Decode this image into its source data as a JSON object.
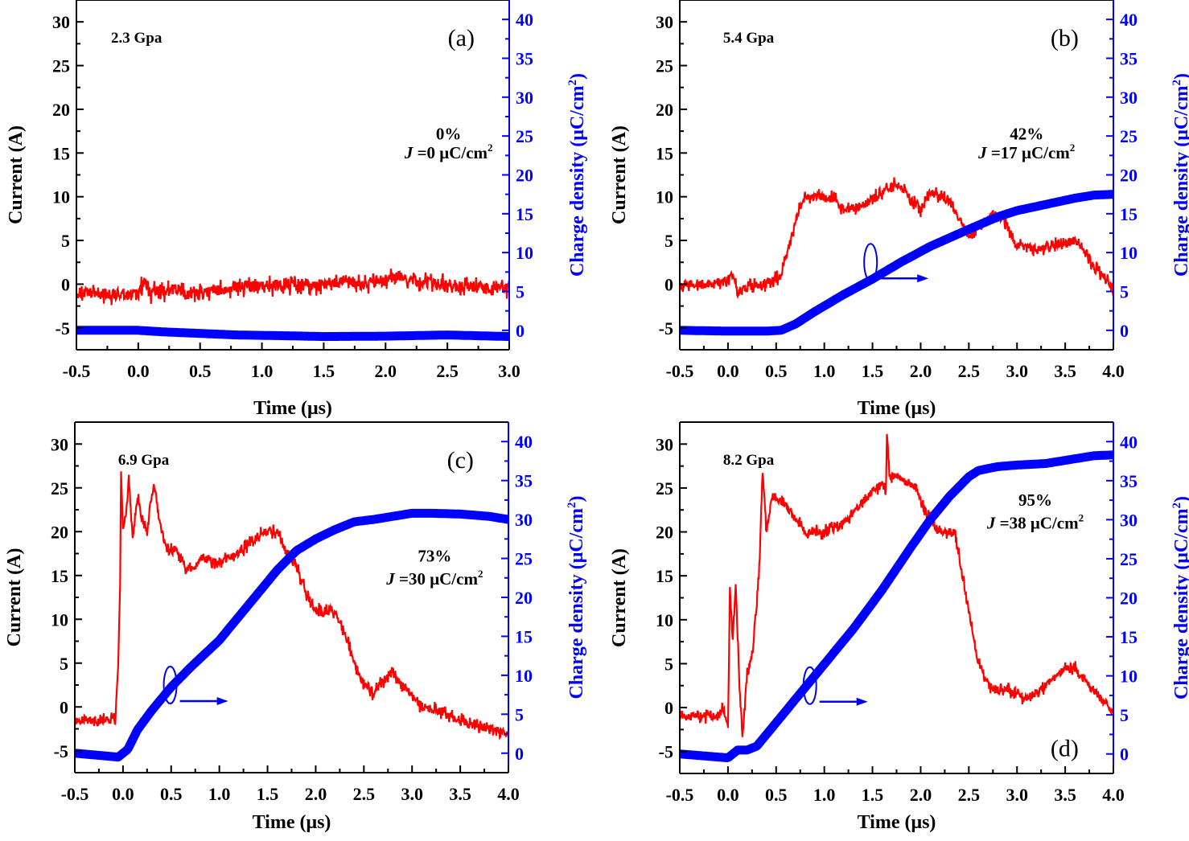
{
  "figure": {
    "colors": {
      "current": "#ff0000",
      "charge": "#0000ff",
      "axis": "#000000",
      "right_axis": "#0000ff"
    }
  },
  "chart_data": [
    {
      "type": "line",
      "panel": "(a)",
      "pressure_label": "2.3 Gpa",
      "percent_label": "0%",
      "J_label": {
        "symbol": "J",
        "text": " =0 μC/cm",
        "sup": "2"
      },
      "xlabel": "Time (μs)",
      "ylabel": "Current (A)",
      "y2label": {
        "text": "Charge density (μC/cm",
        "sup": "2",
        "close": ")"
      },
      "xlim": [
        -0.5,
        3.0
      ],
      "ylim": [
        -7.5,
        32.5
      ],
      "y2lim": [
        -2.5,
        42.5
      ],
      "xticks": [
        -0.5,
        0.0,
        0.5,
        1.0,
        1.5,
        2.0,
        2.5,
        3.0
      ],
      "xtick_labels": [
        "-0.5",
        "0.0",
        "0.5",
        "1.0",
        "1.5",
        "2.0",
        "2.5",
        "3.0"
      ],
      "yticks": [
        -5,
        0,
        5,
        10,
        15,
        20,
        25,
        30
      ],
      "ytick_labels": [
        "-5",
        "0",
        "5",
        "10",
        "15",
        "20",
        "25",
        "30"
      ],
      "y2ticks": [
        0,
        5,
        10,
        15,
        20,
        25,
        30,
        35,
        40
      ],
      "y2tick_labels": [
        "0",
        "5",
        "10",
        "15",
        "20",
        "25",
        "30",
        "35",
        "40"
      ],
      "series": [
        {
          "name": "Current",
          "axis": "left",
          "x": [
            -0.5,
            0.0,
            0.05,
            0.1,
            0.2,
            0.3,
            0.4,
            0.5,
            0.7,
            0.8,
            1.0,
            1.2,
            1.4,
            1.6,
            1.8,
            2.0,
            2.1,
            2.2,
            2.4,
            2.6,
            2.8,
            3.0
          ],
          "y": [
            -1.0,
            -1.2,
            0.5,
            -1.0,
            -0.8,
            -0.5,
            -1.2,
            -1.0,
            -0.6,
            -0.2,
            -0.3,
            0.0,
            -0.1,
            0.2,
            0.0,
            0.5,
            0.8,
            0.4,
            0.0,
            -0.2,
            -0.4,
            -0.5
          ],
          "noise": 1.3
        },
        {
          "name": "Charge density",
          "axis": "right",
          "x": [
            -0.5,
            0.0,
            0.2,
            0.5,
            0.8,
            1.2,
            1.5,
            2.0,
            2.5,
            3.0
          ],
          "y": [
            0.0,
            0.0,
            -0.2,
            -0.4,
            -0.6,
            -0.7,
            -0.8,
            -0.75,
            -0.6,
            -0.8
          ]
        }
      ]
    },
    {
      "type": "line",
      "panel": "(b)",
      "pressure_label": "5.4 Gpa",
      "percent_label": "42%",
      "J_label": {
        "symbol": "J",
        "text": " =17 μC/cm",
        "sup": "2"
      },
      "xlabel": "Time (μs)",
      "ylabel": "Current (A)",
      "y2label": {
        "text": "Charge density (μC/cm",
        "sup": "2",
        "close": ")"
      },
      "xlim": [
        -0.5,
        4.0
      ],
      "ylim": [
        -7.5,
        32.5
      ],
      "y2lim": [
        -2.5,
        42.5
      ],
      "xticks": [
        -0.5,
        0.0,
        0.5,
        1.0,
        1.5,
        2.0,
        2.5,
        3.0,
        3.5,
        4.0
      ],
      "xtick_labels": [
        "-0.5",
        "0.0",
        "0.5",
        "1.0",
        "1.5",
        "2.0",
        "2.5",
        "3.0",
        "3.5",
        "4.0"
      ],
      "yticks": [
        -5,
        0,
        5,
        10,
        15,
        20,
        25,
        30
      ],
      "ytick_labels": [
        "-5",
        "0",
        "5",
        "10",
        "15",
        "20",
        "25",
        "30"
      ],
      "y2ticks": [
        0,
        5,
        10,
        15,
        20,
        25,
        30,
        35,
        40
      ],
      "y2tick_labels": [
        "0",
        "5",
        "10",
        "15",
        "20",
        "25",
        "30",
        "35",
        "40"
      ],
      "series": [
        {
          "name": "Current",
          "axis": "left",
          "x": [
            -0.5,
            -0.1,
            0.05,
            0.1,
            0.2,
            0.4,
            0.55,
            0.65,
            0.75,
            0.8,
            1.0,
            1.1,
            1.2,
            1.4,
            1.6,
            1.75,
            1.85,
            2.0,
            2.1,
            2.3,
            2.4,
            2.5,
            2.65,
            2.75,
            2.85,
            3.0,
            3.2,
            3.4,
            3.6,
            3.8,
            4.0
          ],
          "y": [
            0.0,
            0.0,
            1.0,
            -1.0,
            -0.3,
            0.0,
            1.0,
            5.0,
            9.0,
            10.0,
            10.0,
            10.0,
            8.5,
            9.0,
            10.5,
            11.5,
            10.5,
            8.5,
            10.5,
            9.5,
            7.5,
            5.5,
            7.0,
            8.0,
            7.5,
            4.5,
            4.0,
            4.5,
            5.0,
            2.0,
            -0.5
          ],
          "noise": 0.9
        },
        {
          "name": "Charge density",
          "axis": "right",
          "x": [
            -0.5,
            0.0,
            0.4,
            0.55,
            0.7,
            0.9,
            1.2,
            1.5,
            1.8,
            2.1,
            2.5,
            2.8,
            3.0,
            3.3,
            3.6,
            3.8,
            4.0
          ],
          "y": [
            0.0,
            -0.1,
            -0.1,
            0.0,
            0.8,
            2.4,
            4.6,
            6.6,
            8.8,
            10.8,
            13.0,
            14.6,
            15.4,
            16.2,
            17.0,
            17.4,
            17.5
          ]
        }
      ]
    },
    {
      "type": "line",
      "panel": "(c)",
      "pressure_label": "6.9 Gpa",
      "percent_label": "73%",
      "J_label": {
        "symbol": "J",
        "text": " =30 μC/cm",
        "sup": "2"
      },
      "xlabel": "Time (μs)",
      "ylabel": "Current (A)",
      "y2label": {
        "text": "Charge density (μC/cm",
        "sup": "2",
        "close": ")"
      },
      "xlim": [
        -0.5,
        4.0
      ],
      "ylim": [
        -7.5,
        32.5
      ],
      "y2lim": [
        -2.5,
        42.5
      ],
      "xticks": [
        -0.5,
        0.0,
        0.5,
        1.0,
        1.5,
        2.0,
        2.5,
        3.0,
        3.5,
        4.0
      ],
      "xtick_labels": [
        "-0.5",
        "0.0",
        "0.5",
        "1.0",
        "1.5",
        "2.0",
        "2.5",
        "3.0",
        "3.5",
        "4.0"
      ],
      "yticks": [
        -5,
        0,
        5,
        10,
        15,
        20,
        25,
        30
      ],
      "ytick_labels": [
        "-5",
        "0",
        "5",
        "10",
        "15",
        "20",
        "25",
        "30"
      ],
      "y2ticks": [
        0,
        5,
        10,
        15,
        20,
        25,
        30,
        35,
        40
      ],
      "y2tick_labels": [
        "0",
        "5",
        "10",
        "15",
        "20",
        "25",
        "30",
        "35",
        "40"
      ],
      "series": [
        {
          "name": "Current",
          "axis": "left",
          "x": [
            -0.5,
            -0.08,
            -0.05,
            -0.03,
            -0.02,
            0.0,
            0.03,
            0.06,
            0.1,
            0.15,
            0.2,
            0.25,
            0.3,
            0.33,
            0.38,
            0.45,
            0.55,
            0.65,
            0.72,
            0.8,
            1.0,
            1.2,
            1.4,
            1.5,
            1.6,
            1.7,
            1.8,
            1.9,
            2.0,
            2.1,
            2.2,
            2.3,
            2.45,
            2.6,
            2.7,
            2.8,
            2.9,
            3.1,
            3.3,
            3.6,
            3.8,
            4.0
          ],
          "y": [
            -1.5,
            -1.5,
            5.0,
            14.0,
            27.0,
            20.0,
            22.0,
            26.0,
            19.0,
            24.0,
            21.0,
            20.0,
            24.5,
            25.0,
            21.0,
            18.0,
            18.0,
            16.0,
            15.5,
            17.0,
            16.5,
            17.5,
            19.5,
            20.0,
            20.0,
            17.5,
            16.0,
            13.0,
            11.0,
            11.0,
            11.0,
            8.5,
            3.5,
            1.5,
            3.0,
            4.0,
            2.5,
            0.0,
            -0.5,
            -2.0,
            -2.5,
            -3.0
          ],
          "noise": 0.9
        },
        {
          "name": "Charge density",
          "axis": "right",
          "x": [
            -0.5,
            -0.05,
            0.05,
            0.15,
            0.3,
            0.5,
            0.7,
            1.0,
            1.2,
            1.4,
            1.6,
            1.8,
            2.0,
            2.2,
            2.4,
            2.6,
            2.8,
            3.0,
            3.2,
            3.5,
            3.8,
            4.0
          ],
          "y": [
            0.0,
            -0.5,
            0.5,
            3.0,
            5.5,
            8.5,
            11.0,
            14.5,
            17.5,
            20.5,
            23.5,
            26.0,
            27.5,
            28.7,
            29.7,
            30.0,
            30.4,
            30.8,
            30.8,
            30.7,
            30.4,
            30.0
          ]
        }
      ]
    },
    {
      "type": "line",
      "panel": "(d)",
      "pressure_label": "8.2 Gpa",
      "percent_label": "95%",
      "J_label": {
        "symbol": "J",
        "text": " =38 μC/cm",
        "sup": "2"
      },
      "xlabel": "Time (μs)",
      "ylabel": "Current (A)",
      "y2label": {
        "text": "Charge density (μC/cm",
        "sup": "2",
        "close": ")"
      },
      "xlim": [
        -0.5,
        4.0
      ],
      "ylim": [
        -7.5,
        32.5
      ],
      "y2lim": [
        -2.5,
        42.5
      ],
      "xticks": [
        -0.5,
        0.0,
        0.5,
        1.0,
        1.5,
        2.0,
        2.5,
        3.0,
        3.5,
        4.0
      ],
      "xtick_labels": [
        "-0.5",
        "0.0",
        "0.5",
        "1.0",
        "1.5",
        "2.0",
        "2.5",
        "3.0",
        "3.5",
        "4.0"
      ],
      "yticks": [
        -5,
        0,
        5,
        10,
        15,
        20,
        25,
        30
      ],
      "ytick_labels": [
        "-5",
        "0",
        "5",
        "10",
        "15",
        "20",
        "25",
        "30"
      ],
      "y2ticks": [
        0,
        5,
        10,
        15,
        20,
        25,
        30,
        35,
        40
      ],
      "y2tick_labels": [
        "0",
        "5",
        "10",
        "15",
        "20",
        "25",
        "30",
        "35",
        "40"
      ],
      "series": [
        {
          "name": "Current",
          "axis": "left",
          "x": [
            -0.5,
            -0.1,
            -0.05,
            0.0,
            0.02,
            0.05,
            0.08,
            0.12,
            0.15,
            0.2,
            0.25,
            0.3,
            0.33,
            0.36,
            0.4,
            0.45,
            0.5,
            0.6,
            0.8,
            1.0,
            1.2,
            1.4,
            1.6,
            1.64,
            1.65,
            1.68,
            1.8,
            1.95,
            2.05,
            2.2,
            2.35,
            2.45,
            2.6,
            2.75,
            2.9,
            3.1,
            3.3,
            3.5,
            3.6,
            3.8,
            4.0
          ],
          "y": [
            -1.0,
            -1.0,
            0.0,
            -2.5,
            13.5,
            8.0,
            14.0,
            2.0,
            -3.0,
            4.0,
            6.0,
            12.0,
            17.0,
            27.0,
            20.0,
            24.0,
            24.0,
            23.0,
            20.0,
            20.0,
            21.0,
            23.5,
            25.5,
            25.0,
            31.0,
            26.5,
            26.0,
            25.0,
            22.0,
            20.0,
            20.0,
            14.0,
            5.0,
            2.0,
            2.0,
            1.0,
            2.5,
            4.5,
            4.5,
            2.0,
            -0.5
          ],
          "noise": 0.9
        },
        {
          "name": "Charge density",
          "axis": "right",
          "x": [
            -0.5,
            0.0,
            0.1,
            0.2,
            0.3,
            0.4,
            0.6,
            0.8,
            1.0,
            1.3,
            1.6,
            1.9,
            2.1,
            2.3,
            2.5,
            2.6,
            2.8,
            3.0,
            3.3,
            3.6,
            3.8,
            4.0
          ],
          "y": [
            0.0,
            -0.5,
            0.5,
            0.5,
            1.0,
            2.5,
            5.5,
            8.5,
            11.5,
            16.0,
            21.0,
            26.5,
            30.0,
            33.0,
            35.5,
            36.3,
            36.8,
            37.0,
            37.2,
            37.8,
            38.2,
            38.3
          ]
        }
      ]
    }
  ]
}
